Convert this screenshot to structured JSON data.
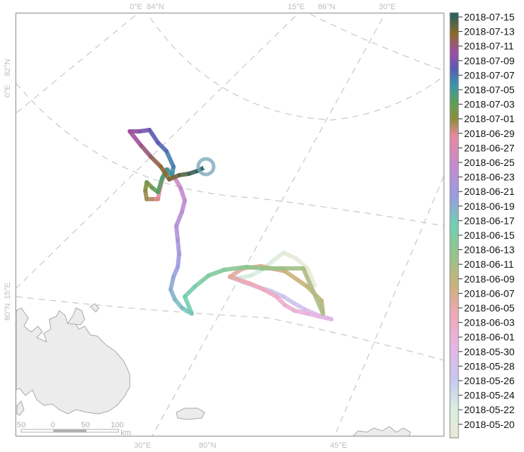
{
  "map": {
    "graticule_labels": [
      "0°E",
      "84°N",
      "15°E",
      "86°N",
      "30°E",
      "0°E",
      "82°N",
      "80°N",
      "15°E",
      "30°E",
      "80°N",
      "45°E"
    ],
    "scale_bar": {
      "ticks": [
        "50",
        "0",
        "50",
        "100"
      ],
      "unit": "km"
    },
    "track_colors_note": "colors follow legend date ramp",
    "colors": {
      "track_start": "#ede9d6",
      "track_end": "#1e5f62",
      "land": "#ececec",
      "land_outline": "#a8a8a8"
    }
  },
  "legend": {
    "entries": [
      "2018-07-15",
      "2018-07-13",
      "2018-07-11",
      "2018-07-09",
      "2018-07-07",
      "2018-07-05",
      "2018-07-03",
      "2018-07-01",
      "2018-06-29",
      "2018-06-27",
      "2018-06-25",
      "2018-06-23",
      "2018-06-21",
      "2018-06-19",
      "2018-06-17",
      "2018-06-15",
      "2018-06-13",
      "2018-06-11",
      "2018-06-09",
      "2018-06-07",
      "2018-06-05",
      "2018-06-03",
      "2018-06-01",
      "2018-05-30",
      "2018-05-28",
      "2018-05-26",
      "2018-05-24",
      "2018-05-22",
      "2018-05-20"
    ]
  }
}
